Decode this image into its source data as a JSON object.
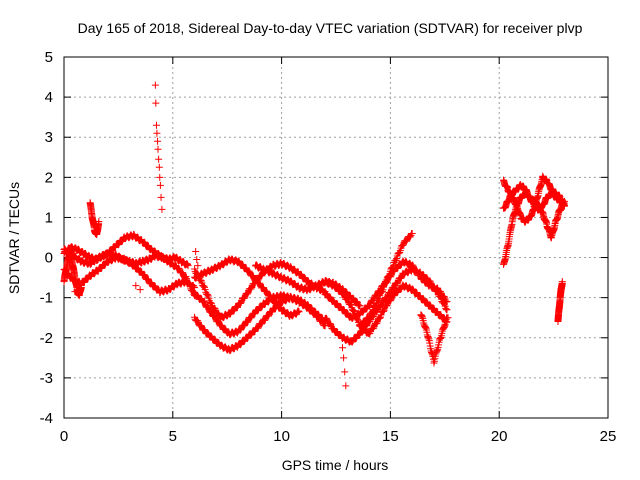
{
  "chart_data": {
    "type": "scatter",
    "title": "Day 165 of 2018, Sidereal Day-to-day VTEC variation (SDTVAR) for receiver plvp",
    "xlabel": "GPS time / hours",
    "ylabel": "SDTVAR / TECUs",
    "xlim": [
      0,
      25
    ],
    "ylim": [
      -4,
      5
    ],
    "xticks": [
      0,
      5,
      10,
      15,
      20,
      25
    ],
    "yticks": [
      -4,
      -3,
      -2,
      -1,
      0,
      1,
      2,
      3,
      4,
      5
    ],
    "xtick_labels": [
      "0",
      "5",
      "10",
      "15",
      "20",
      "25"
    ],
    "ytick_labels": [
      "-4",
      "-3",
      "-2",
      "-1",
      "0",
      "1",
      "2",
      "3",
      "4",
      "5"
    ],
    "grid": true,
    "marker": "+",
    "series": [
      {
        "name": "SDTVAR",
        "color": "#ff0000",
        "tracks": [
          {
            "x": [
              0.0,
              0.4,
              0.8,
              1.2,
              1.6,
              2.0,
              2.4,
              2.8,
              3.2,
              3.6,
              4.0,
              4.4,
              4.8,
              5.2,
              5.6,
              6.0
            ],
            "y": [
              0.2,
              0.05,
              -0.1,
              -0.15,
              0.0,
              0.1,
              0.3,
              0.5,
              0.55,
              0.4,
              0.2,
              0.05,
              -0.1,
              -0.25,
              -0.5,
              -0.95
            ]
          },
          {
            "x": [
              0.0,
              0.4,
              0.8,
              1.2,
              1.6,
              2.0,
              2.4,
              2.8,
              3.2,
              3.6,
              4.0,
              4.4,
              4.8,
              5.2,
              5.6,
              6.0
            ],
            "y": [
              -0.3,
              -0.55,
              -0.65,
              -0.45,
              -0.3,
              -0.1,
              0.0,
              -0.05,
              -0.2,
              -0.4,
              -0.65,
              -0.85,
              -0.8,
              -0.65,
              -0.6,
              -0.75
            ]
          },
          {
            "x": [
              0.0,
              0.3,
              0.6,
              0.9,
              1.2,
              1.5,
              1.8,
              2.1,
              2.4,
              2.7,
              3.0,
              3.3,
              3.6,
              3.9,
              4.2,
              4.5,
              4.8,
              5.1,
              5.4,
              5.7
            ],
            "y": [
              0.1,
              0.25,
              0.2,
              0.1,
              0.0,
              -0.05,
              0.05,
              0.1,
              0.05,
              -0.05,
              -0.1,
              -0.15,
              -0.1,
              -0.05,
              0.05,
              0.0,
              -0.05,
              0.0,
              -0.1,
              -0.2
            ]
          },
          {
            "x": [
              0.0,
              0.1,
              0.2,
              0.3,
              0.4,
              0.5,
              0.6,
              0.7,
              0.8
            ],
            "y": [
              -0.6,
              -0.3,
              0.0,
              0.15,
              -0.2,
              -0.5,
              -0.8,
              -0.95,
              -0.7
            ]
          },
          {
            "x": [
              1.2,
              1.3,
              1.4,
              1.5,
              1.6
            ],
            "y": [
              1.35,
              1.0,
              0.7,
              0.55,
              0.9
            ]
          },
          {
            "x": [
              6.0,
              6.4,
              6.8,
              7.2,
              7.6,
              8.0,
              8.4,
              8.8,
              9.2,
              9.6,
              10.0,
              10.4,
              10.8,
              11.2,
              11.6,
              12.0
            ],
            "y": [
              -0.3,
              -0.7,
              -1.2,
              -1.5,
              -1.4,
              -1.2,
              -0.9,
              -0.6,
              -0.35,
              -0.2,
              -0.15,
              -0.25,
              -0.4,
              -0.6,
              -0.75,
              -0.85
            ]
          },
          {
            "x": [
              6.0,
              6.4,
              6.8,
              7.2,
              7.6,
              8.0,
              8.4,
              8.8,
              9.2,
              9.6,
              10.0,
              10.4,
              10.8,
              11.2,
              11.6,
              12.0
            ],
            "y": [
              -1.5,
              -1.8,
              -2.0,
              -2.2,
              -2.3,
              -2.2,
              -2.0,
              -1.8,
              -1.55,
              -1.3,
              -1.1,
              -1.0,
              -1.05,
              -1.2,
              -1.4,
              -1.6
            ]
          },
          {
            "x": [
              6.0,
              6.4,
              6.8,
              7.2,
              7.6,
              8.0,
              8.4,
              8.8,
              9.2,
              9.6,
              10.0,
              10.4,
              10.8,
              11.2,
              11.6,
              12.0
            ],
            "y": [
              -0.9,
              -1.1,
              -1.4,
              -1.7,
              -1.9,
              -1.85,
              -1.6,
              -1.35,
              -1.15,
              -1.0,
              -0.95,
              -1.0,
              -1.1,
              -1.25,
              -1.45,
              -1.7
            ]
          },
          {
            "x": [
              6.0,
              6.4,
              6.8,
              7.2,
              7.6,
              8.0,
              8.4,
              8.8,
              9.2,
              9.6,
              10.0,
              10.4,
              10.8
            ],
            "y": [
              -0.5,
              -0.4,
              -0.3,
              -0.2,
              -0.05,
              -0.1,
              -0.3,
              -0.55,
              -0.8,
              -1.05,
              -1.3,
              -1.45,
              -1.35
            ]
          },
          {
            "x": [
              8.8,
              9.2,
              9.6,
              10.0,
              10.4,
              10.8,
              11.2,
              11.6,
              12.0,
              12.4,
              12.8,
              13.2,
              13.6
            ],
            "y": [
              -0.2,
              -0.3,
              -0.4,
              -0.5,
              -0.6,
              -0.75,
              -0.8,
              -0.7,
              -0.6,
              -0.65,
              -0.8,
              -1.0,
              -1.2
            ]
          },
          {
            "x": [
              12.0,
              12.4,
              12.8,
              13.2,
              13.6,
              14.0,
              14.4,
              14.8,
              15.2,
              15.6,
              16.0,
              16.4,
              16.8,
              17.2,
              17.6
            ],
            "y": [
              -1.5,
              -1.8,
              -2.0,
              -2.1,
              -1.9,
              -1.6,
              -1.3,
              -1.0,
              -0.7,
              -0.4,
              -0.3,
              -0.4,
              -0.6,
              -0.9,
              -1.3
            ]
          },
          {
            "x": [
              12.0,
              12.4,
              12.8,
              13.2,
              13.6,
              14.0,
              14.4,
              14.8,
              15.2,
              15.6,
              16.0,
              16.4,
              16.8,
              17.2,
              17.6
            ],
            "y": [
              -0.9,
              -1.1,
              -1.3,
              -1.5,
              -1.4,
              -1.2,
              -0.9,
              -0.6,
              -0.3,
              -0.1,
              -0.2,
              -0.5,
              -0.7,
              -0.8,
              -1.1
            ]
          },
          {
            "x": [
              12.0,
              12.4,
              12.8,
              13.2,
              13.6,
              14.0,
              14.4,
              14.8,
              15.2,
              15.6,
              16.0,
              16.4,
              16.8,
              17.2,
              17.6
            ],
            "y": [
              -0.6,
              -0.7,
              -0.9,
              -1.2,
              -1.7,
              -1.9,
              -1.6,
              -1.2,
              -0.9,
              -0.7,
              -0.8,
              -1.0,
              -1.2,
              -1.4,
              -1.6
            ]
          },
          {
            "x": [
              13.6,
              14.0,
              14.4,
              14.8,
              15.2,
              15.6,
              16.0
            ],
            "y": [
              -1.7,
              -1.5,
              -1.1,
              -0.6,
              -0.1,
              0.35,
              0.6
            ]
          },
          {
            "x": [
              16.4,
              16.7,
              17.0,
              17.3,
              17.6
            ],
            "y": [
              -1.4,
              -1.9,
              -2.6,
              -2.0,
              -1.5
            ]
          },
          {
            "x": [
              20.2,
              20.4,
              20.6,
              20.8,
              21.0,
              21.2,
              21.4,
              21.6,
              21.8,
              22.0,
              22.2,
              22.4,
              22.6,
              22.8,
              23.0
            ],
            "y": [
              -0.2,
              0.3,
              0.9,
              1.3,
              1.5,
              1.6,
              1.5,
              1.4,
              1.3,
              1.1,
              0.8,
              0.5,
              0.9,
              1.2,
              1.4
            ]
          },
          {
            "x": [
              20.2,
              20.4,
              20.6,
              20.8,
              21.0,
              21.2,
              21.4,
              21.6,
              21.8,
              22.0,
              22.2,
              22.4,
              22.6,
              22.8,
              23.0
            ],
            "y": [
              1.9,
              1.7,
              1.5,
              1.3,
              1.0,
              0.9,
              1.0,
              1.2,
              1.6,
              2.0,
              1.9,
              1.7,
              1.6,
              1.5,
              1.3
            ]
          },
          {
            "x": [
              20.2,
              20.4,
              20.6,
              20.8,
              21.0,
              21.2,
              21.4,
              21.6,
              21.8,
              22.0,
              22.2,
              22.4,
              22.6,
              22.8,
              23.0
            ],
            "y": [
              1.2,
              1.4,
              1.6,
              1.7,
              1.8,
              1.7,
              1.5,
              1.3,
              1.2,
              1.3,
              1.5,
              1.6,
              1.5,
              1.4,
              1.3
            ]
          },
          {
            "x": [
              22.7,
              22.75,
              22.8,
              22.85,
              22.9
            ],
            "y": [
              -1.6,
              -1.3,
              -1.0,
              -0.8,
              -0.6
            ]
          }
        ],
        "points": [
          [
            4.2,
            4.3
          ],
          [
            4.22,
            3.85
          ],
          [
            4.25,
            3.3
          ],
          [
            4.27,
            3.1
          ],
          [
            4.3,
            2.9
          ],
          [
            4.32,
            2.7
          ],
          [
            4.35,
            2.45
          ],
          [
            4.38,
            2.25
          ],
          [
            4.4,
            2.0
          ],
          [
            4.43,
            1.8
          ],
          [
            4.46,
            1.5
          ],
          [
            4.5,
            1.2
          ],
          [
            12.85,
            -2.5
          ],
          [
            12.9,
            -2.85
          ],
          [
            12.95,
            -3.2
          ],
          [
            12.8,
            -2.25
          ],
          [
            6.05,
            0.15
          ],
          [
            6.1,
            -0.05
          ],
          [
            6.15,
            -0.2
          ],
          [
            3.3,
            -0.7
          ],
          [
            3.5,
            -0.8
          ],
          [
            0.5,
            -0.85
          ],
          [
            0.7,
            -0.95
          ],
          [
            17.5,
            -1.7
          ],
          [
            17.65,
            -1.5
          ]
        ]
      }
    ]
  }
}
